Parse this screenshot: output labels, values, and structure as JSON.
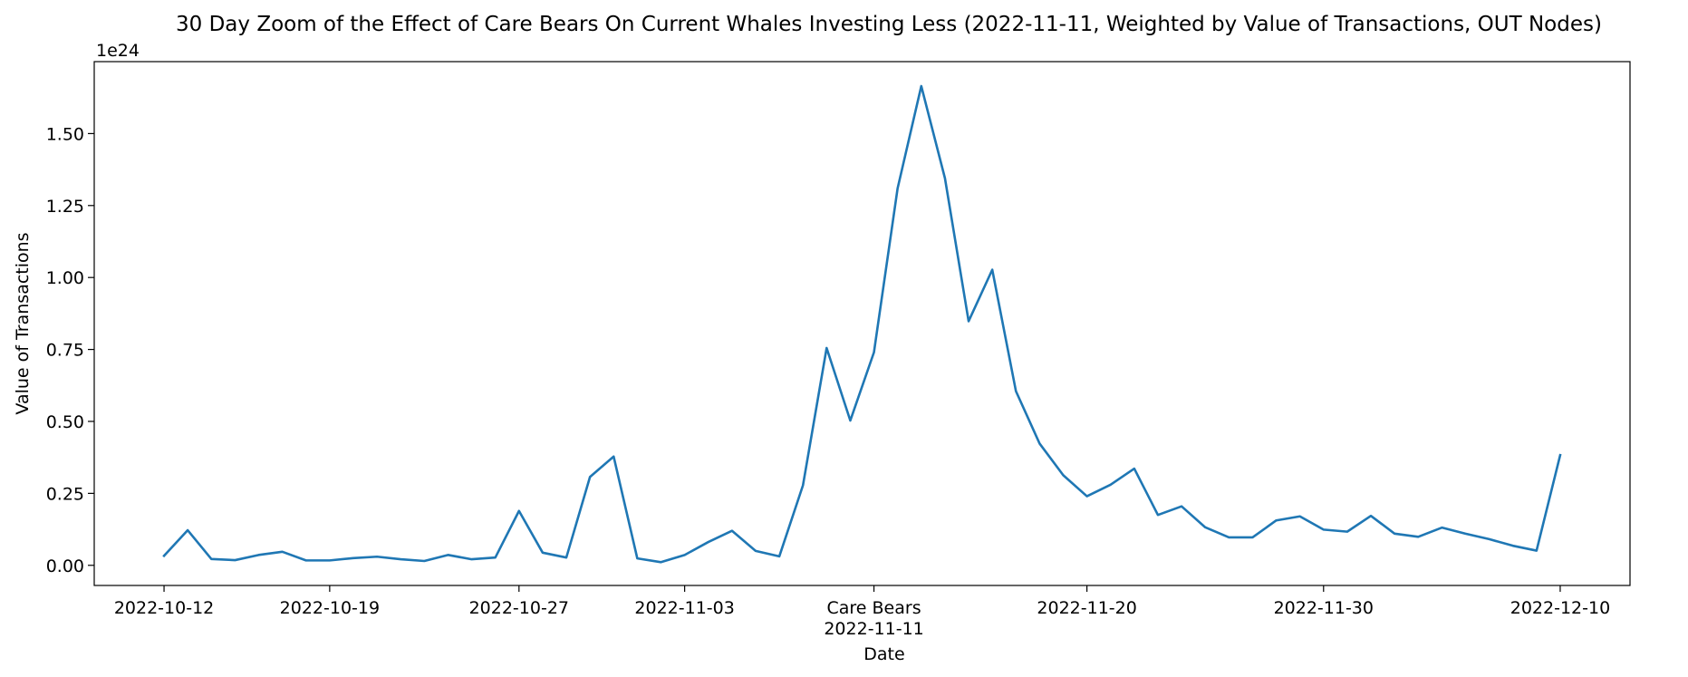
{
  "chart_data": {
    "type": "line",
    "title": "30 Day Zoom of the Effect of Care Bears On Current Whales Investing Less (2022-11-11, Weighted by Value of Transactions, OUT Nodes)",
    "xlabel": "Date",
    "ylabel": "Value of Transactions",
    "y_offset_label": "1e24",
    "y_scale_note": "values in units of 1e24",
    "xlim": [
      "2022-10-12",
      "2022-12-10"
    ],
    "ylim": [
      -0.07,
      1.75
    ],
    "grid": false,
    "legend": "none",
    "color": "#1f77b4",
    "x_ticks": [
      {
        "date": "2022-10-12",
        "label": "2022-10-12"
      },
      {
        "date": "2022-10-19",
        "label": "2022-10-19"
      },
      {
        "date": "2022-10-27",
        "label": "2022-10-27"
      },
      {
        "date": "2022-11-03",
        "label": "2022-11-03"
      },
      {
        "date": "2022-11-11",
        "label": "Care Bears",
        "label2": "2022-11-11"
      },
      {
        "date": "2022-11-20",
        "label": "2022-11-20"
      },
      {
        "date": "2022-11-30",
        "label": "2022-11-30"
      },
      {
        "date": "2022-12-10",
        "label": "2022-12-10"
      }
    ],
    "y_ticks": [
      {
        "value": 0.0,
        "label": "0.00"
      },
      {
        "value": 0.25,
        "label": "0.25"
      },
      {
        "value": 0.5,
        "label": "0.50"
      },
      {
        "value": 0.75,
        "label": "0.75"
      },
      {
        "value": 1.0,
        "label": "1.00"
      },
      {
        "value": 1.25,
        "label": "1.25"
      },
      {
        "value": 1.5,
        "label": "1.50"
      }
    ],
    "series": [
      {
        "x": [
          "2022-10-12",
          "2022-10-13",
          "2022-10-14",
          "2022-10-15",
          "2022-10-16",
          "2022-10-17",
          "2022-10-18",
          "2022-10-19",
          "2022-10-20",
          "2022-10-21",
          "2022-10-22",
          "2022-10-23",
          "2022-10-24",
          "2022-10-25",
          "2022-10-26",
          "2022-10-27",
          "2022-10-28",
          "2022-10-29",
          "2022-10-30",
          "2022-10-31",
          "2022-11-01",
          "2022-11-02",
          "2022-11-03",
          "2022-11-04",
          "2022-11-05",
          "2022-11-06",
          "2022-11-07",
          "2022-11-08",
          "2022-11-09",
          "2022-11-10",
          "2022-11-11",
          "2022-11-12",
          "2022-11-13",
          "2022-11-14",
          "2022-11-15",
          "2022-11-16",
          "2022-11-17",
          "2022-11-18",
          "2022-11-19",
          "2022-11-20",
          "2022-11-21",
          "2022-11-22",
          "2022-11-23",
          "2022-11-24",
          "2022-11-25",
          "2022-11-26",
          "2022-11-27",
          "2022-11-28",
          "2022-11-29",
          "2022-11-30",
          "2022-12-01",
          "2022-12-02",
          "2022-12-03",
          "2022-12-04",
          "2022-12-05",
          "2022-12-06",
          "2022-12-07",
          "2022-12-08",
          "2022-12-09",
          "2022-12-10"
        ],
        "y": [
          0.033,
          0.122,
          0.022,
          0.018,
          0.036,
          0.047,
          0.017,
          0.017,
          0.025,
          0.03,
          0.021,
          0.015,
          0.036,
          0.021,
          0.027,
          0.189,
          0.044,
          0.027,
          0.307,
          0.378,
          0.024,
          0.011,
          0.036,
          0.081,
          0.12,
          0.05,
          0.031,
          0.278,
          0.755,
          0.503,
          0.74,
          1.31,
          1.665,
          1.345,
          0.848,
          1.027,
          0.605,
          0.423,
          0.313,
          0.24,
          0.28,
          0.336,
          0.175,
          0.205,
          0.132,
          0.097,
          0.097,
          0.156,
          0.17,
          0.124,
          0.117,
          0.172,
          0.11,
          0.099,
          0.131,
          0.11,
          0.091,
          0.068,
          0.051,
          0.383
        ]
      }
    ]
  }
}
